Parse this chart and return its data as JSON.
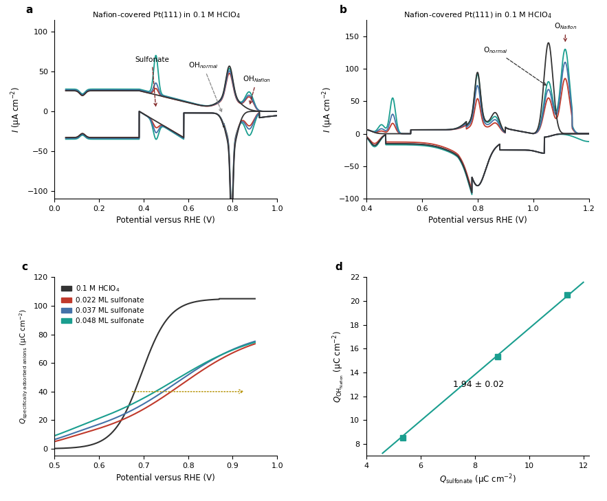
{
  "colors": {
    "black": "#333333",
    "red": "#c0392b",
    "blue": "#4472a8",
    "teal": "#1a9e8f"
  },
  "panel_a": {
    "title": "Nafion-covered Pt(111) in 0.1 M HClO$_4$",
    "xlabel": "Potential versus RHE (V)",
    "ylabel": "$I$ (μA cm$^{-2}$)",
    "xlim": [
      0.0,
      1.0
    ],
    "ylim": [
      -110,
      115
    ],
    "yticks": [
      -100,
      -50,
      0,
      50,
      100
    ],
    "xticks": [
      0.0,
      0.2,
      0.4,
      0.6,
      0.8,
      1.0
    ]
  },
  "panel_b": {
    "title": "Nafion-covered Pt(111) in 0.1 M HClO$_4$",
    "xlabel": "Potential versus RHE (V)",
    "ylabel": "$I$ (μA cm$^{-2}$)",
    "xlim": [
      0.4,
      1.2
    ],
    "ylim": [
      -100,
      175
    ],
    "yticks": [
      -100,
      -50,
      0,
      50,
      100,
      150
    ],
    "xticks": [
      0.4,
      0.6,
      0.8,
      1.0,
      1.2
    ]
  },
  "panel_c": {
    "xlabel": "Potential versus RHE (V)",
    "ylabel": "$Q_{\\mathrm{specifically\\ adsorbed\\ anions}}$ (μC cm$^{-2}$)",
    "xlim": [
      0.5,
      1.0
    ],
    "ylim": [
      -5,
      120
    ],
    "yticks": [
      0,
      20,
      40,
      60,
      80,
      100,
      120
    ],
    "xticks": [
      0.5,
      0.6,
      0.7,
      0.8,
      0.9,
      1.0
    ],
    "legend": [
      "0.1 M HClO$_4$",
      "0.022 ML sulfonate",
      "0.037 ML sulfonate",
      "0.048 ML sulfonate"
    ]
  },
  "panel_d": {
    "xlabel": "$Q_{\\mathrm{sulfonate}}$ (μC cm$^{-2}$)",
    "ylabel": "$Q_{\\mathrm{OH_{Nafion}}}$ (μC cm$^{-2}$)",
    "xlim": [
      4.5,
      12.2
    ],
    "ylim": [
      7.0,
      22.0
    ],
    "yticks": [
      8,
      10,
      12,
      14,
      16,
      18,
      20,
      22
    ],
    "xticks": [
      4,
      6,
      8,
      10,
      12
    ],
    "points": [
      [
        5.35,
        8.5
      ],
      [
        8.85,
        15.35
      ],
      [
        11.4,
        20.5
      ]
    ],
    "fit_x": [
      4.6,
      12.0
    ],
    "fit_slope": 1.94,
    "fit_intercept": -1.7,
    "annotation": "1.94 ± 0.02"
  }
}
